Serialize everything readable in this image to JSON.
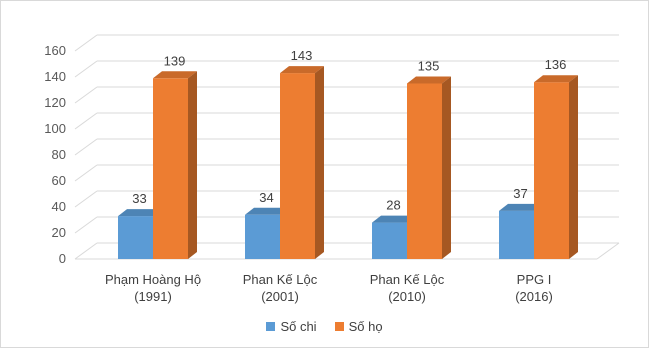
{
  "chart_data": {
    "type": "bar",
    "categories": [
      [
        "Phạm Hoàng Hộ",
        "(1991)"
      ],
      [
        "Phan Kế Lộc",
        "(2001)"
      ],
      [
        "Phan Kế Lộc",
        "(2010)"
      ],
      [
        "PPG I",
        "(2016)"
      ]
    ],
    "series": [
      {
        "name": "Số chi",
        "values": [
          33,
          34,
          28,
          37
        ],
        "color": "#5b9bd5"
      },
      {
        "name": "Số họ",
        "values": [
          139,
          143,
          135,
          136
        ],
        "color": "#ed7d31"
      }
    ],
    "ylim": [
      0,
      160
    ],
    "yticks": [
      0,
      20,
      40,
      60,
      80,
      100,
      120,
      140,
      160
    ],
    "grid": true,
    "legend_position": "bottom",
    "style": "3d-clustered-column"
  }
}
